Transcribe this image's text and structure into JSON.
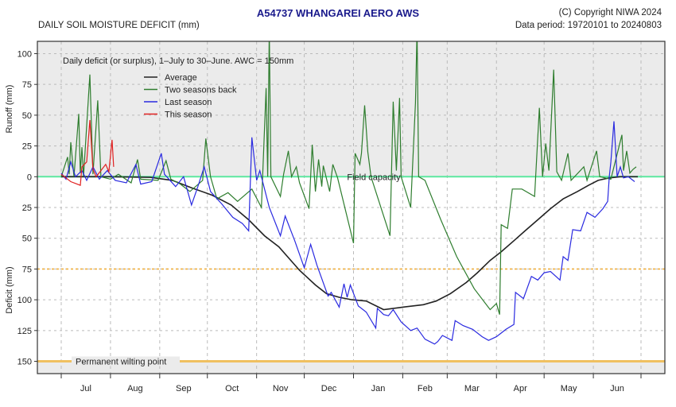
{
  "header": {
    "title": "A54737  WHANGAREI AERO AWS",
    "subtitle_left": "DAILY SOIL MOISTURE DEFICIT (mm)",
    "copyright": "(C) Copyright NIWA  2024",
    "data_period": "Data period:  19720101  to  20240803"
  },
  "chart_data": {
    "type": "line",
    "title": "A54737  WHANGAREI AERO AWS",
    "annotation": "Daily deficit (or surplus), 1–July to 30–June.  AWC = 150mm",
    "ylabel_upper": "Runoff (mm)",
    "ylabel_lower": "Deficit (mm)",
    "value_convention": "runoff positive, deficit negative",
    "ylim": [
      -160,
      110
    ],
    "y_ticks": [
      100,
      75,
      50,
      25,
      0,
      -25,
      -50,
      -75,
      -100,
      -125,
      -150
    ],
    "y_tick_labels": [
      "100",
      "75",
      "50",
      "25",
      "0",
      "25",
      "50",
      "75",
      "100",
      "125",
      "150"
    ],
    "x_tick_labels": [
      "Jul",
      "Aug",
      "Sep",
      "Oct",
      "Nov",
      "Dec",
      "Jan",
      "Feb",
      "Mar",
      "Apr",
      "May",
      "Jun"
    ],
    "grid": true,
    "legend_placement": "top-left",
    "reference_lines": [
      {
        "label": "Field capacity",
        "value": 0,
        "color": "#5de8a0"
      },
      {
        "label": "",
        "value": -75,
        "color": "#f0b040",
        "style": "dotted"
      },
      {
        "label": "Permanent wilting point",
        "value": -150,
        "color": "#f0c060"
      }
    ],
    "colors": {
      "title": "#1a1a8c",
      "shade": "#ebebeb"
    },
    "series": [
      {
        "name": "Average",
        "color": "#222222",
        "points": [
          [
            "Jul 1",
            0
          ],
          [
            "Jul 31",
            0
          ],
          [
            "Aug 26",
            -0.5
          ],
          [
            "Sep 9",
            -3
          ],
          [
            "Sep 21",
            -9
          ],
          [
            "Oct 4",
            -15
          ],
          [
            "Oct 16",
            -23
          ],
          [
            "Oct 27",
            -35
          ],
          [
            "Nov 6",
            -48
          ],
          [
            "Nov 15",
            -57
          ],
          [
            "Nov 28",
            -76
          ],
          [
            "Dec 8",
            -88
          ],
          [
            "Dec 15",
            -95
          ],
          [
            "Dec 23",
            -98
          ],
          [
            "Dec 31",
            -100
          ],
          [
            "Jan 9",
            -101
          ],
          [
            "Jan 20",
            -108
          ],
          [
            "Feb 1",
            -106
          ],
          [
            "Feb 14",
            -104
          ],
          [
            "Feb 22",
            -101
          ],
          [
            "Mar 3",
            -95
          ],
          [
            "Mar 13",
            -86
          ],
          [
            "Mar 20",
            -78
          ],
          [
            "Mar 28",
            -68
          ],
          [
            "Apr 4",
            -61
          ],
          [
            "Apr 12",
            -52
          ],
          [
            "Apr 19",
            -44
          ],
          [
            "Apr 27",
            -35
          ],
          [
            "May 5",
            -26
          ],
          [
            "May 13",
            -18
          ],
          [
            "May 22",
            -12
          ],
          [
            "May 29",
            -7
          ],
          [
            "Jun 4",
            -3
          ],
          [
            "Jun 11",
            -1
          ],
          [
            "Jun 18",
            0
          ],
          [
            "Jun 29",
            0
          ]
        ]
      },
      {
        "name": "Two seasons back",
        "color": "#2e7d2e",
        "points": [
          [
            "Jul 1",
            0
          ],
          [
            "Jul 5",
            16
          ],
          [
            "Jul 6",
            2
          ],
          [
            "Jul 7",
            28
          ],
          [
            "Jul 9",
            0
          ],
          [
            "Jul 12",
            51
          ],
          [
            "Jul 13",
            3
          ],
          [
            "Jul 14",
            24
          ],
          [
            "Jul 15",
            0
          ],
          [
            "Jul 19",
            83
          ],
          [
            "Jul 21",
            2
          ],
          [
            "Jul 24",
            62
          ],
          [
            "Jul 26",
            0
          ],
          [
            "Aug 1",
            -2
          ],
          [
            "Aug 6",
            2
          ],
          [
            "Aug 14",
            -5
          ],
          [
            "Aug 18",
            14
          ],
          [
            "Aug 20",
            -2
          ],
          [
            "Aug 31",
            -3
          ],
          [
            "Sep 5",
            13
          ],
          [
            "Sep 8",
            -2
          ],
          [
            "Sep 14",
            -6
          ],
          [
            "Sep 20",
            -12
          ],
          [
            "Sep 28",
            -3
          ],
          [
            "Sep 30",
            31
          ],
          [
            "Oct 3",
            0
          ],
          [
            "Oct 7",
            -18
          ],
          [
            "Oct 14",
            -13
          ],
          [
            "Oct 20",
            -20
          ],
          [
            "Oct 29",
            -10
          ],
          [
            "Nov 4",
            -25
          ],
          [
            "Nov 7",
            72
          ],
          [
            "Nov 8",
            0
          ],
          [
            "Nov 9",
            120
          ],
          [
            "Nov 10",
            0
          ],
          [
            "Nov 16",
            -16
          ],
          [
            "Nov 18",
            2
          ],
          [
            "Nov 21",
            21
          ],
          [
            "Nov 23",
            0
          ],
          [
            "Nov 26",
            8
          ],
          [
            "Nov 28",
            -5
          ],
          [
            "Dec 4",
            -26
          ],
          [
            "Dec 6",
            26
          ],
          [
            "Dec 8",
            -12
          ],
          [
            "Dec 10",
            14
          ],
          [
            "Dec 12",
            -8
          ],
          [
            "Dec 13",
            9
          ],
          [
            "Dec 17",
            -12
          ],
          [
            "Dec 19",
            10
          ],
          [
            "Dec 22",
            -1
          ],
          [
            "Jan 1",
            -54
          ],
          [
            "Jan 2",
            19
          ],
          [
            "Jan 5",
            10
          ],
          [
            "Jan 6",
            19
          ],
          [
            "Jan 8",
            58
          ],
          [
            "Jan 10",
            20
          ],
          [
            "Jan 12",
            0
          ],
          [
            "Jan 24",
            -48
          ],
          [
            "Jan 26",
            61
          ],
          [
            "Jan 28",
            5
          ],
          [
            "Jan 30",
            64
          ],
          [
            "Jan 31",
            0
          ],
          [
            "Feb 6",
            -25
          ],
          [
            "Feb 9",
            60
          ],
          [
            "Feb 10",
            120
          ],
          [
            "Feb 11",
            0
          ],
          [
            "Feb 15",
            -3
          ],
          [
            "Feb 25",
            -35
          ],
          [
            "Mar 7",
            -65
          ],
          [
            "Mar 18",
            -91
          ],
          [
            "Mar 28",
            -108
          ],
          [
            "Apr 1",
            -103
          ],
          [
            "Apr 3",
            -112
          ],
          [
            "Apr 4",
            -39
          ],
          [
            "Apr 8",
            -42
          ],
          [
            "Apr 11",
            -10
          ],
          [
            "Apr 17",
            -10
          ],
          [
            "Apr 25",
            -16
          ],
          [
            "Apr 28",
            56
          ],
          [
            "Apr 30",
            0
          ],
          [
            "May 2",
            27
          ],
          [
            "May 4",
            5
          ],
          [
            "May 7",
            87
          ],
          [
            "May 9",
            4
          ],
          [
            "May 12",
            -3
          ],
          [
            "May 16",
            19
          ],
          [
            "May 18",
            -3
          ],
          [
            "May 26",
            8
          ],
          [
            "May 28",
            -3
          ],
          [
            "Jun 3",
            21
          ],
          [
            "Jun 5",
            0
          ],
          [
            "Jun 12",
            -2
          ],
          [
            "Jun 19",
            34
          ],
          [
            "Jun 20",
            5
          ],
          [
            "Jun 22",
            21
          ],
          [
            "Jun 24",
            3
          ],
          [
            "Jun 26",
            6
          ],
          [
            "Jun 28",
            8
          ]
        ]
      },
      {
        "name": "Last season",
        "color": "#2a2ae0",
        "points": [
          [
            "Jul 1",
            3
          ],
          [
            "Jul 4",
            -2
          ],
          [
            "Jul 7",
            12
          ],
          [
            "Jul 10",
            0
          ],
          [
            "Jul 14",
            5
          ],
          [
            "Jul 17",
            -3
          ],
          [
            "Jul 21",
            8
          ],
          [
            "Jul 25",
            -2
          ],
          [
            "Jul 30",
            5
          ],
          [
            "Aug 4",
            -3
          ],
          [
            "Aug 11",
            -5
          ],
          [
            "Aug 17",
            10
          ],
          [
            "Aug 20",
            -6
          ],
          [
            "Aug 27",
            -4
          ],
          [
            "Sep 2",
            19
          ],
          [
            "Sep 4",
            2
          ],
          [
            "Sep 11",
            -8
          ],
          [
            "Sep 16",
            0
          ],
          [
            "Sep 21",
            -23
          ],
          [
            "Sep 25",
            -8
          ],
          [
            "Sep 29",
            8
          ],
          [
            "Oct 3",
            -12
          ],
          [
            "Oct 10",
            -22
          ],
          [
            "Oct 17",
            -33
          ],
          [
            "Oct 23",
            -38
          ],
          [
            "Oct 27",
            -44
          ],
          [
            "Oct 29",
            32
          ],
          [
            "Nov 1",
            -3
          ],
          [
            "Nov 3",
            5
          ],
          [
            "Nov 9",
            -25
          ],
          [
            "Nov 16",
            -48
          ],
          [
            "Nov 19",
            -32
          ],
          [
            "Nov 25",
            -52
          ],
          [
            "Dec 1",
            -74
          ],
          [
            "Dec 5",
            -55
          ],
          [
            "Dec 9",
            -72
          ],
          [
            "Dec 16",
            -97
          ],
          [
            "Dec 18",
            -94
          ],
          [
            "Dec 23",
            -106
          ],
          [
            "Dec 26",
            -87
          ],
          [
            "Dec 28",
            -98
          ],
          [
            "Dec 30",
            -88
          ],
          [
            "Jan 4",
            -105
          ],
          [
            "Jan 9",
            -110
          ],
          [
            "Jan 15",
            -123
          ],
          [
            "Jan 16",
            -107
          ],
          [
            "Jan 20",
            -112
          ],
          [
            "Jan 23",
            -113
          ],
          [
            "Jan 26",
            -108
          ],
          [
            "Jan 31",
            -118
          ],
          [
            "Feb 6",
            -125
          ],
          [
            "Feb 10",
            -123
          ],
          [
            "Feb 15",
            -132
          ],
          [
            "Feb 21",
            -136
          ],
          [
            "Feb 23",
            -134
          ],
          [
            "Feb 26",
            -129
          ],
          [
            "Mar 4",
            -133
          ],
          [
            "Mar 6",
            -117
          ],
          [
            "Mar 11",
            -121
          ],
          [
            "Mar 17",
            -124
          ],
          [
            "Mar 23",
            -130
          ],
          [
            "Mar 27",
            -133
          ],
          [
            "Apr 1",
            -130
          ],
          [
            "Apr 7",
            -124
          ],
          [
            "Apr 12",
            -120
          ],
          [
            "Apr 13",
            -94
          ],
          [
            "Apr 18",
            -99
          ],
          [
            "Apr 23",
            -81
          ],
          [
            "Apr 27",
            -84
          ],
          [
            "May 1",
            -78
          ],
          [
            "May 5",
            -77
          ],
          [
            "May 11",
            -84
          ],
          [
            "May 13",
            -65
          ],
          [
            "May 16",
            -68
          ],
          [
            "May 19",
            -43
          ],
          [
            "May 24",
            -44
          ],
          [
            "May 28",
            -29
          ],
          [
            "Jun 2",
            -33
          ],
          [
            "Jun 7",
            -26
          ],
          [
            "Jun 10",
            -20
          ],
          [
            "Jun 11",
            0
          ],
          [
            "Jun 12",
            12
          ],
          [
            "Jun 14",
            45
          ],
          [
            "Jun 16",
            0
          ],
          [
            "Jun 18",
            8
          ],
          [
            "Jun 20",
            -1
          ],
          [
            "Jun 23",
            0
          ],
          [
            "Jun 27",
            -4
          ]
        ]
      },
      {
        "name": "This season",
        "color": "#e02020",
        "points": [
          [
            "Jul 1",
            2
          ],
          [
            "Jul 7",
            -4
          ],
          [
            "Jul 13",
            -7
          ],
          [
            "Jul 14",
            8
          ],
          [
            "Jul 17",
            12
          ],
          [
            "Jul 19",
            46
          ],
          [
            "Jul 21",
            6
          ],
          [
            "Jul 23",
            0
          ],
          [
            "Jul 26",
            5
          ],
          [
            "Jul 29",
            10
          ],
          [
            "Jul 31",
            4
          ],
          [
            "Aug 2",
            30
          ],
          [
            "Aug 3",
            8
          ]
        ]
      }
    ]
  }
}
